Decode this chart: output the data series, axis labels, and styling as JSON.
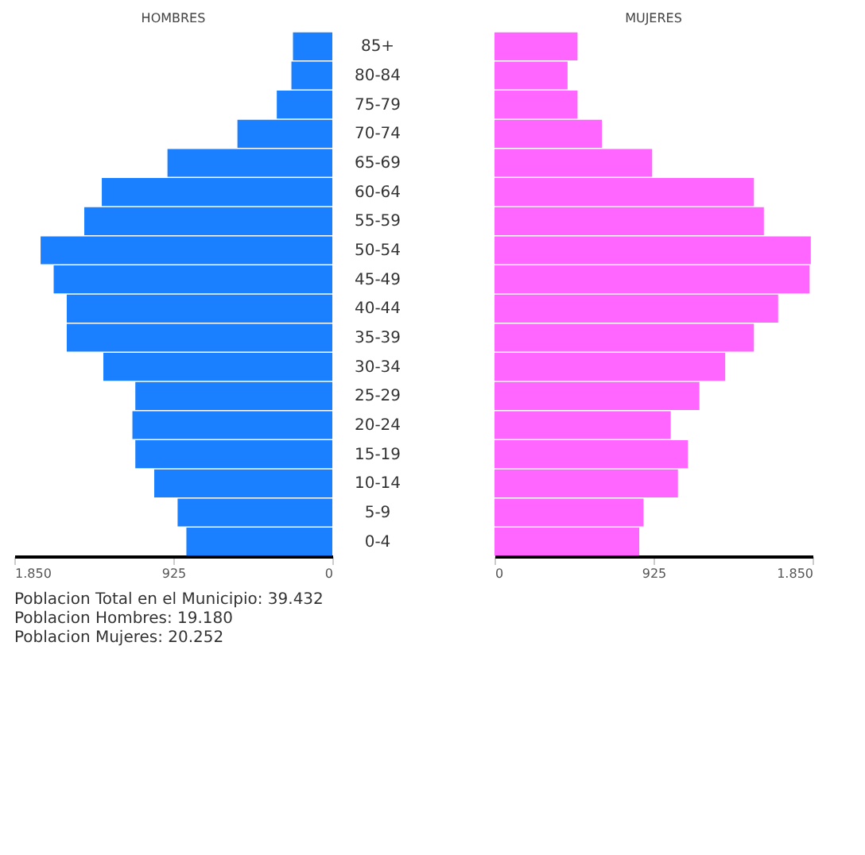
{
  "chart_data": [
    {
      "type": "bar",
      "orientation": "horizontal",
      "title": "HOMBRES",
      "categories": [
        "85+",
        "80-84",
        "75-79",
        "70-74",
        "65-69",
        "60-64",
        "55-59",
        "50-54",
        "45-49",
        "40-44",
        "35-39",
        "30-34",
        "25-29",
        "20-24",
        "15-19",
        "10-14",
        "5-9",
        "0-4"
      ],
      "series": [
        {
          "color": "#1a80ff",
          "values": [
            229,
            238,
            323,
            552,
            959,
            1341,
            1443,
            1697,
            1621,
            1545,
            1545,
            1332,
            1146,
            1163,
            1146,
            1036,
            900,
            849
          ]
        }
      ],
      "xlim": [
        1850,
        0
      ],
      "xticks": [
        {
          "value": 1850,
          "label": "1.850"
        },
        925,
        0
      ],
      "annotations": [
        "Poblacion Total en el Municipio: 39.432",
        "Poblacion Hombres: 19.180",
        "Poblacion Mujeres: 20.252"
      ]
    },
    {
      "type": "bar",
      "orientation": "horizontal",
      "title": "MUJERES",
      "categories": [
        null,
        null,
        null,
        null,
        null,
        null,
        null,
        null,
        null,
        null,
        null,
        null,
        null,
        null,
        null,
        null,
        null,
        null
      ],
      "series": [
        {
          "color": "#ff66ff",
          "values": [
            483,
            425,
            483,
            625,
            917,
            1509,
            1567,
            1840,
            1833,
            1650,
            1509,
            1342,
            1192,
            1025,
            1125,
            1067,
            867,
            842
          ]
        }
      ],
      "xlim": [
        0,
        1850
      ],
      "xticks": [
        0,
        925,
        {
          "value": 1850,
          "label": "1.850"
        }
      ]
    }
  ]
}
